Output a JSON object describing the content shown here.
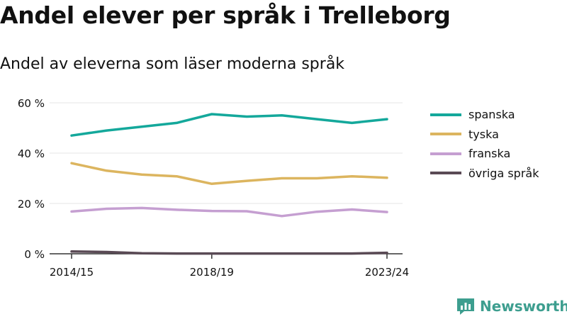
{
  "header": {
    "title": "Andel elever per språk i Trelleborg",
    "subtitle": "Andel av eleverna som läser moderna språk"
  },
  "brand": {
    "name": "Newsworthy",
    "color": "#3d9e8f",
    "icon": "newsworthy-logo-icon"
  },
  "colors": {
    "axis": "#333333",
    "grid": "#e6e6e6",
    "text": "#111111"
  },
  "chart_data": {
    "type": "line",
    "title": "Andel elever per språk i Trelleborg",
    "subtitle": "Andel av eleverna som läser moderna språk",
    "x": [
      "2014/15",
      "2015/16",
      "2016/17",
      "2017/18",
      "2018/19",
      "2019/20",
      "2020/21",
      "2021/22",
      "2022/23",
      "2023/24"
    ],
    "x_tick_labels": [
      "2014/15",
      "2018/19",
      "2023/24"
    ],
    "y_ticks": [
      0,
      20,
      40,
      60
    ],
    "y_tick_labels": [
      "0 %",
      "20 %",
      "40 %",
      "60 %"
    ],
    "ylim": [
      0,
      60
    ],
    "grid": true,
    "legend_position": "right",
    "series": [
      {
        "name": "spanska",
        "color": "#14a89b",
        "values": [
          47,
          49,
          50.5,
          52,
          55.5,
          54.5,
          55,
          53.5,
          52,
          53.5
        ]
      },
      {
        "name": "tyska",
        "color": "#dcb55f",
        "values": [
          36,
          33,
          31.5,
          30.8,
          27.8,
          29,
          30,
          30,
          30.8,
          30.2
        ]
      },
      {
        "name": "franska",
        "color": "#c59fd1",
        "values": [
          16.8,
          17.9,
          18.2,
          17.5,
          17,
          16.9,
          15,
          16.7,
          17.6,
          16.6
        ]
      },
      {
        "name": "övriga språk",
        "color": "#5a4a55",
        "values": [
          0.9,
          0.7,
          0.2,
          0.1,
          0.1,
          0.1,
          0.1,
          0.1,
          0.1,
          0.4
        ]
      }
    ]
  }
}
